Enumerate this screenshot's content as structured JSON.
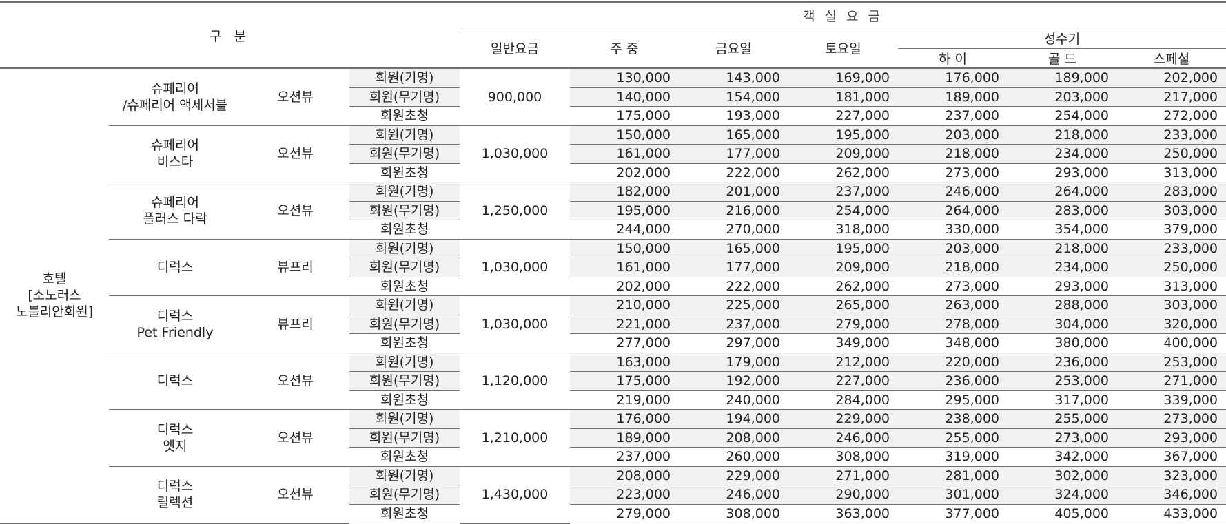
{
  "header": {
    "gubun": "구 분",
    "room_rates": "객 실 요 금",
    "general_rate": "일반요금",
    "weekday": "주 중",
    "friday": "금요일",
    "saturday": "토요일",
    "peak_season": "성수기",
    "high": "하 이",
    "gold": "골 드",
    "special": "스페셜"
  },
  "category": {
    "line1": "호텔",
    "line2": "[소노러스",
    "line3": "노블리안회원]"
  },
  "groups": [
    {
      "room_line1": "슈페리어",
      "room_line2": "/슈페리어 액세서블",
      "view": "오션뷰",
      "general": "900,000",
      "rows": [
        {
          "member": "회원(기명)",
          "values": [
            "130,000",
            "143,000",
            "169,000",
            "176,000",
            "189,000",
            "202,000"
          ]
        },
        {
          "member": "회원(무기명)",
          "values": [
            "140,000",
            "154,000",
            "181,000",
            "189,000",
            "203,000",
            "217,000"
          ]
        },
        {
          "member": "회원초청",
          "values": [
            "175,000",
            "193,000",
            "227,000",
            "237,000",
            "254,000",
            "272,000"
          ]
        }
      ]
    },
    {
      "room_line1": "슈페리어",
      "room_line2": "비스타",
      "view": "오션뷰",
      "general": "1,030,000",
      "rows": [
        {
          "member": "회원(기명)",
          "values": [
            "150,000",
            "165,000",
            "195,000",
            "203,000",
            "218,000",
            "233,000"
          ]
        },
        {
          "member": "회원(무기명)",
          "values": [
            "161,000",
            "177,000",
            "209,000",
            "218,000",
            "234,000",
            "250,000"
          ]
        },
        {
          "member": "회원초청",
          "values": [
            "202,000",
            "222,000",
            "262,000",
            "273,000",
            "293,000",
            "313,000"
          ]
        }
      ]
    },
    {
      "room_line1": "슈페리어",
      "room_line2": "플러스 다락",
      "view": "오션뷰",
      "general": "1,250,000",
      "rows": [
        {
          "member": "회원(기명)",
          "values": [
            "182,000",
            "201,000",
            "237,000",
            "246,000",
            "264,000",
            "283,000"
          ]
        },
        {
          "member": "회원(무기명)",
          "values": [
            "195,000",
            "216,000",
            "254,000",
            "264,000",
            "283,000",
            "303,000"
          ]
        },
        {
          "member": "회원초청",
          "values": [
            "244,000",
            "270,000",
            "318,000",
            "330,000",
            "354,000",
            "379,000"
          ]
        }
      ]
    },
    {
      "room_line1": "디럭스",
      "room_line2": "",
      "view": "뷰프리",
      "general": "1,030,000",
      "rows": [
        {
          "member": "회원(기명)",
          "values": [
            "150,000",
            "165,000",
            "195,000",
            "203,000",
            "218,000",
            "233,000"
          ]
        },
        {
          "member": "회원(무기명)",
          "values": [
            "161,000",
            "177,000",
            "209,000",
            "218,000",
            "234,000",
            "250,000"
          ]
        },
        {
          "member": "회원초청",
          "values": [
            "202,000",
            "222,000",
            "262,000",
            "273,000",
            "293,000",
            "313,000"
          ]
        }
      ]
    },
    {
      "room_line1": "디럭스",
      "room_line2": "Pet Friendly",
      "view": "뷰프리",
      "general": "1,030,000",
      "rows": [
        {
          "member": "회원(기명)",
          "values": [
            "210,000",
            "225,000",
            "265,000",
            "263,000",
            "288,000",
            "303,000"
          ]
        },
        {
          "member": "회원(무기명)",
          "values": [
            "221,000",
            "237,000",
            "279,000",
            "278,000",
            "304,000",
            "320,000"
          ]
        },
        {
          "member": "회원초청",
          "values": [
            "277,000",
            "297,000",
            "349,000",
            "348,000",
            "380,000",
            "400,000"
          ]
        }
      ]
    },
    {
      "room_line1": "디럭스",
      "room_line2": "",
      "view": "오션뷰",
      "general": "1,120,000",
      "rows": [
        {
          "member": "회원(기명)",
          "values": [
            "163,000",
            "179,000",
            "212,000",
            "220,000",
            "236,000",
            "253,000"
          ]
        },
        {
          "member": "회원(무기명)",
          "values": [
            "175,000",
            "192,000",
            "227,000",
            "236,000",
            "253,000",
            "271,000"
          ]
        },
        {
          "member": "회원초청",
          "values": [
            "219,000",
            "240,000",
            "284,000",
            "295,000",
            "317,000",
            "339,000"
          ]
        }
      ]
    },
    {
      "room_line1": "디럭스",
      "room_line2": "엣지",
      "view": "오션뷰",
      "general": "1,210,000",
      "rows": [
        {
          "member": "회원(기명)",
          "values": [
            "176,000",
            "194,000",
            "229,000",
            "238,000",
            "255,000",
            "273,000"
          ]
        },
        {
          "member": "회원(무기명)",
          "values": [
            "189,000",
            "208,000",
            "246,000",
            "255,000",
            "273,000",
            "293,000"
          ]
        },
        {
          "member": "회원초청",
          "values": [
            "237,000",
            "260,000",
            "308,000",
            "319,000",
            "342,000",
            "367,000"
          ]
        }
      ]
    },
    {
      "room_line1": "디럭스",
      "room_line2": "릴렉션",
      "view": "오션뷰",
      "general": "1,430,000",
      "rows": [
        {
          "member": "회원(기명)",
          "values": [
            "208,000",
            "229,000",
            "271,000",
            "281,000",
            "302,000",
            "323,000"
          ]
        },
        {
          "member": "회원(무기명)",
          "values": [
            "223,000",
            "246,000",
            "290,000",
            "301,000",
            "324,000",
            "346,000"
          ]
        },
        {
          "member": "회원초청",
          "values": [
            "279,000",
            "308,000",
            "363,000",
            "377,000",
            "405,000",
            "433,000"
          ]
        }
      ]
    }
  ]
}
